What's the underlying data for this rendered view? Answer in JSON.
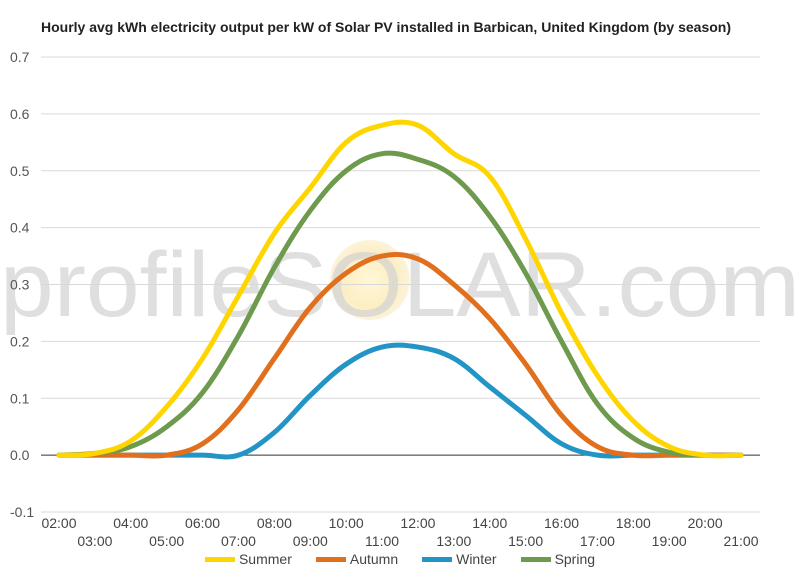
{
  "chart_data": {
    "type": "line",
    "title": "Hourly avg kWh electricity output per kW of Solar PV installed in Barbican, United Kingdom (by season)",
    "xlabel": "",
    "ylabel": "",
    "watermark": "profileSOLAR.com",
    "ylim": [
      -0.1,
      0.7
    ],
    "yticks": [
      "0.7",
      "0.6",
      "0.5",
      "0.4",
      "0.3",
      "0.2",
      "0.1",
      "0.0",
      "-0.1"
    ],
    "x": [
      "02:00",
      "03:00",
      "04:00",
      "05:00",
      "06:00",
      "07:00",
      "08:00",
      "09:00",
      "10:00",
      "11:00",
      "12:00",
      "13:00",
      "14:00",
      "15:00",
      "16:00",
      "17:00",
      "18:00",
      "19:00",
      "20:00",
      "21:00"
    ],
    "grid": true,
    "legend_position": "bottom",
    "series": [
      {
        "name": "Summer",
        "color": "#FFD500",
        "values": [
          0,
          0.003,
          0.025,
          0.085,
          0.17,
          0.28,
          0.39,
          0.47,
          0.55,
          0.58,
          0.58,
          0.53,
          0.49,
          0.38,
          0.25,
          0.14,
          0.06,
          0.015,
          0,
          0
        ]
      },
      {
        "name": "Autumn",
        "color": "#E0701E",
        "values": [
          0,
          0,
          0,
          0,
          0.02,
          0.08,
          0.17,
          0.26,
          0.32,
          0.35,
          0.345,
          0.3,
          0.24,
          0.16,
          0.07,
          0.015,
          0,
          0,
          0,
          0
        ]
      },
      {
        "name": "Winter",
        "color": "#2294C6",
        "values": [
          0,
          0,
          0,
          0,
          0,
          0,
          0.04,
          0.105,
          0.16,
          0.19,
          0.19,
          0.17,
          0.12,
          0.07,
          0.02,
          0,
          0,
          0,
          0,
          0
        ]
      },
      {
        "name": "Spring",
        "color": "#6E9A4E",
        "values": [
          0,
          0.003,
          0.015,
          0.05,
          0.11,
          0.21,
          0.33,
          0.43,
          0.5,
          0.53,
          0.52,
          0.49,
          0.42,
          0.32,
          0.2,
          0.09,
          0.03,
          0.005,
          0,
          0
        ]
      }
    ]
  }
}
